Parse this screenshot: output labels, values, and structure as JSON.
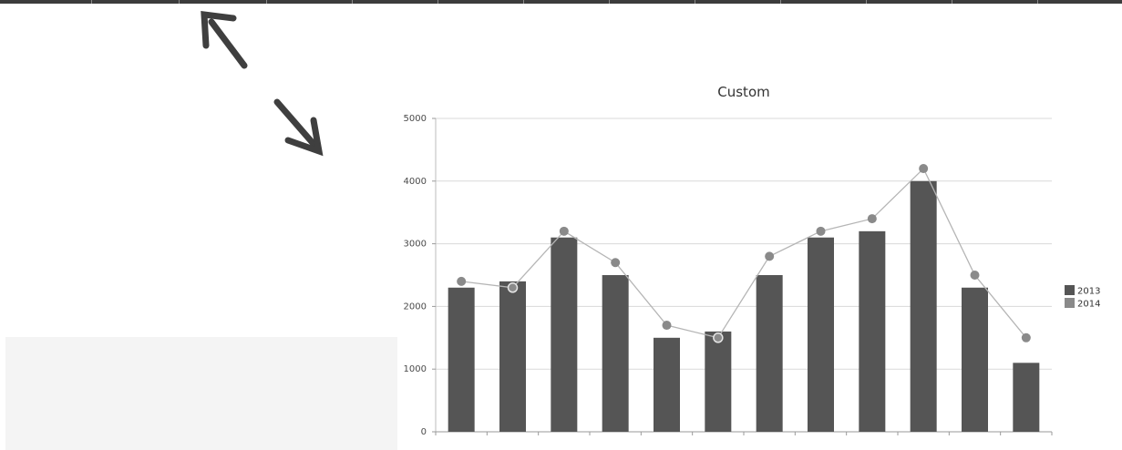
{
  "chart_data": {
    "type": "bar",
    "title": "Custom",
    "xlabel": "",
    "ylabel": "",
    "ylim": [
      0,
      5000
    ],
    "yticks": [
      0,
      1000,
      2000,
      3000,
      4000,
      5000
    ],
    "grid": true,
    "legend_position": "right",
    "categories": [
      "",
      "",
      "",
      "",
      "",
      "",
      "",
      "",
      "",
      "",
      "",
      ""
    ],
    "series": [
      {
        "name": "2013",
        "kind": "bar",
        "color": "#555555",
        "values": [
          2300,
          2400,
          3100,
          2500,
          1500,
          1600,
          2500,
          3100,
          3200,
          4000,
          2300,
          1100
        ]
      },
      {
        "name": "2014",
        "kind": "line",
        "color": "#8a8a8a",
        "values": [
          2400,
          2300,
          3200,
          2700,
          1700,
          1500,
          2800,
          3200,
          3400,
          4200,
          2500,
          1500
        ]
      }
    ]
  }
}
